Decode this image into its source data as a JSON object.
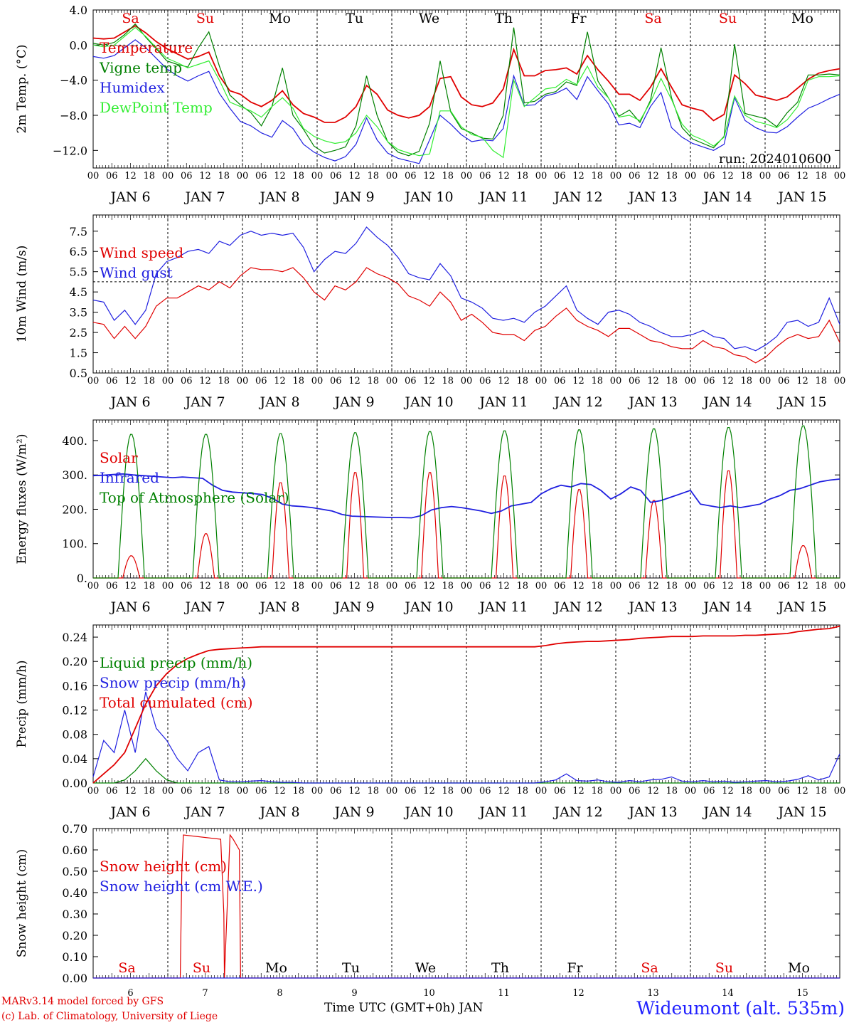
{
  "chart_data": [
    {
      "type": "line",
      "ylabel": "2m Temp. (°C)",
      "ylim": [
        -14,
        4
      ],
      "yticks": [
        "4.0",
        "0.0",
        "−4.0",
        "−8.0",
        "−12.0"
      ],
      "ytick_values": [
        4,
        0,
        -4,
        -8,
        -12
      ],
      "dashed_y": 0,
      "weekday_labels": true,
      "annotation": "run: 2024010600",
      "series": [
        {
          "name": "Temperature",
          "color": "#e00000",
          "values": [
            0.8,
            0.7,
            0.8,
            1.5,
            2.2,
            1.4,
            0.4,
            -0.4,
            -1.0,
            -1.6,
            -1.3,
            -0.8,
            -3.5,
            -5.2,
            -5.6,
            -6.5,
            -7.0,
            -6.3,
            -5.2,
            -6.8,
            -7.8,
            -8.2,
            -8.8,
            -8.8,
            -8.2,
            -7.0,
            -4.6,
            -5.6,
            -7.4,
            -8.0,
            -8.3,
            -8.0,
            -7.0,
            -3.8,
            -3.6,
            -5.9,
            -6.8,
            -7.0,
            -6.6,
            -5.0,
            -0.5,
            -3.5,
            -3.5,
            -2.9,
            -2.8,
            -2.6,
            -3.3,
            -1.2,
            -2.8,
            -4.1,
            -5.6,
            -5.6,
            -6.3,
            -4.8,
            -2.7,
            -4.8,
            -6.8,
            -7.2,
            -7.5,
            -8.6,
            -7.9,
            -3.4,
            -4.4,
            -5.7,
            -6.0,
            -6.3,
            -5.9,
            -4.9,
            -3.9,
            -3.2,
            -2.9,
            -2.7
          ]
        },
        {
          "name": "Vigne temp",
          "color": "#008000",
          "values": [
            0.2,
            0.0,
            0.3,
            1.2,
            2.4,
            0.9,
            -0.4,
            -1.8,
            -2.2,
            -2.5,
            -0.3,
            1.5,
            -2.4,
            -5.7,
            -6.8,
            -7.7,
            -9.2,
            -7.0,
            -2.6,
            -8.0,
            -9.6,
            -11.5,
            -12.3,
            -12.0,
            -11.6,
            -9.2,
            -3.5,
            -8.0,
            -11.0,
            -12.2,
            -12.6,
            -12.1,
            -8.9,
            -1.8,
            -7.6,
            -9.5,
            -10.0,
            -10.6,
            -10.7,
            -8.0,
            2.0,
            -6.6,
            -6.4,
            -5.6,
            -5.3,
            -4.2,
            -4.6,
            1.5,
            -4.1,
            -6.0,
            -8.1,
            -7.4,
            -8.8,
            -6.3,
            -0.3,
            -6.0,
            -9.4,
            -10.7,
            -11.2,
            -11.7,
            -10.4,
            0.1,
            -7.8,
            -8.1,
            -8.4,
            -9.3,
            -7.7,
            -6.5,
            -3.4,
            -3.4,
            -3.3,
            -3.4
          ]
        },
        {
          "name": "Humidex",
          "color": "#2020e0",
          "values": [
            -1.3,
            -1.5,
            -1.2,
            -0.3,
            0.6,
            -0.3,
            -1.5,
            -2.7,
            -3.5,
            -4.1,
            -3.5,
            -3.0,
            -5.5,
            -7.2,
            -8.7,
            -9.2,
            -10.0,
            -10.5,
            -8.6,
            -9.5,
            -11.3,
            -12.2,
            -12.8,
            -13.2,
            -12.7,
            -11.3,
            -8.3,
            -10.8,
            -12.3,
            -12.9,
            -13.2,
            -13.5,
            -10.8,
            -8.0,
            -9.0,
            -10.2,
            -11.0,
            -10.8,
            -10.9,
            -9.5,
            -3.5,
            -6.9,
            -6.8,
            -5.8,
            -5.5,
            -4.9,
            -6.2,
            -3.6,
            -5.2,
            -6.7,
            -9.1,
            -8.9,
            -9.4,
            -7.0,
            -5.4,
            -9.4,
            -10.5,
            -11.2,
            -11.6,
            -12.0,
            -11.3,
            -6.0,
            -8.6,
            -9.4,
            -9.9,
            -10.0,
            -9.3,
            -8.2,
            -7.2,
            -6.7,
            -6.1,
            -5.6
          ]
        },
        {
          "name": "DewPoint Temp",
          "color": "#33ee33",
          "values": [
            0.0,
            -0.2,
            0.0,
            1.0,
            2.0,
            1.0,
            -0.3,
            -1.5,
            -2.0,
            -2.6,
            -2.2,
            -1.8,
            -4.0,
            -6.5,
            -7.0,
            -7.5,
            -8.2,
            -7.0,
            -6.0,
            -7.2,
            -9.5,
            -10.4,
            -10.9,
            -11.2,
            -11.0,
            -10.0,
            -8.0,
            -9.3,
            -11.0,
            -11.9,
            -12.3,
            -12.6,
            -12.4,
            -7.5,
            -7.5,
            -9.3,
            -10.2,
            -10.5,
            -12.0,
            -12.8,
            -4.0,
            -7.0,
            -6.0,
            -5.0,
            -4.8,
            -3.9,
            -4.5,
            -2.4,
            -4.8,
            -6.0,
            -8.2,
            -8.0,
            -8.6,
            -6.5,
            -3.8,
            -6.2,
            -9.0,
            -10.3,
            -10.8,
            -11.5,
            -10.5,
            -5.8,
            -8.0,
            -8.7,
            -9.0,
            -9.4,
            -8.5,
            -7.0,
            -4.0,
            -3.6,
            -3.6,
            -3.5
          ]
        }
      ],
      "legend": [
        "Temperature",
        "Vigne temp",
        "Humidex",
        "DewPoint Temp"
      ],
      "legend_placement": "left"
    },
    {
      "type": "line",
      "ylabel": "10m Wind (m/s)",
      "ylim": [
        0.5,
        8.3
      ],
      "yticks": [
        "7.5",
        "6.5",
        "5.5",
        "4.5",
        "3.5",
        "2.5",
        "1.5",
        "0.5"
      ],
      "ytick_values": [
        7.5,
        6.5,
        5.5,
        4.5,
        3.5,
        2.5,
        1.5,
        0.5
      ],
      "dashed_y": 5,
      "series": [
        {
          "name": "Wind speed",
          "color": "#e00000",
          "values": [
            3.0,
            2.9,
            2.2,
            2.8,
            2.2,
            2.8,
            3.8,
            4.2,
            4.2,
            4.5,
            4.8,
            4.6,
            5.0,
            4.7,
            5.3,
            5.7,
            5.6,
            5.6,
            5.5,
            5.7,
            5.2,
            4.5,
            4.1,
            4.8,
            4.6,
            5.0,
            5.7,
            5.4,
            5.2,
            4.9,
            4.3,
            4.1,
            3.8,
            4.5,
            4.0,
            3.1,
            3.4,
            3.0,
            2.5,
            2.4,
            2.4,
            2.1,
            2.6,
            2.8,
            3.3,
            3.7,
            3.1,
            2.8,
            2.6,
            2.3,
            2.7,
            2.7,
            2.4,
            2.1,
            2.0,
            1.8,
            1.7,
            1.7,
            2.1,
            1.8,
            1.7,
            1.4,
            1.3,
            1.0,
            1.3,
            1.8,
            2.2,
            2.4,
            2.2,
            2.3,
            3.1,
            2.0
          ]
        },
        {
          "name": "Wind gust",
          "color": "#2020e0",
          "values": [
            4.1,
            4.0,
            3.1,
            3.6,
            2.9,
            3.6,
            5.4,
            6.0,
            6.2,
            6.5,
            6.6,
            6.4,
            7.0,
            6.8,
            7.3,
            7.5,
            7.3,
            7.4,
            7.3,
            7.4,
            6.7,
            5.5,
            6.1,
            6.5,
            6.4,
            6.9,
            7.7,
            7.2,
            6.8,
            6.2,
            5.4,
            5.2,
            5.1,
            5.9,
            5.3,
            4.2,
            4.0,
            3.7,
            3.2,
            3.1,
            3.2,
            3.0,
            3.5,
            3.8,
            4.3,
            4.8,
            3.6,
            3.2,
            2.9,
            3.5,
            3.6,
            3.4,
            3.0,
            2.8,
            2.5,
            2.3,
            2.3,
            2.4,
            2.6,
            2.3,
            2.2,
            1.7,
            1.8,
            1.6,
            1.9,
            2.3,
            3.0,
            3.1,
            2.8,
            3.0,
            4.2,
            2.9
          ]
        }
      ],
      "legend": [
        "Wind speed",
        "Wind gust"
      ],
      "legend_placement": "left"
    },
    {
      "type": "line",
      "ylabel": "Energy fluxes (W/m²)",
      "ylim": [
        0,
        460
      ],
      "yticks": [
        "400.",
        "300.",
        "200.",
        "100.",
        "0."
      ],
      "ytick_values": [
        400,
        300,
        200,
        100,
        0
      ],
      "series": [
        {
          "name": "Solar",
          "color": "#e00000",
          "day_peaks": [
            65,
            130,
            280,
            310,
            310,
            300,
            260,
            228,
            315,
            95
          ]
        },
        {
          "name": "Infrared",
          "color": "#2020e0",
          "values": [
            298,
            299,
            301,
            303,
            300,
            298,
            296,
            294,
            292,
            294,
            292,
            290,
            270,
            255,
            250,
            248,
            246,
            243,
            232,
            215,
            210,
            208,
            205,
            200,
            195,
            185,
            180,
            179,
            178,
            177,
            176,
            176,
            175,
            182,
            198,
            205,
            208,
            205,
            200,
            195,
            188,
            195,
            210,
            215,
            220,
            245,
            260,
            270,
            265,
            275,
            272,
            255,
            230,
            245,
            265,
            255,
            220,
            225,
            235,
            245,
            255,
            215,
            210,
            205,
            210,
            205,
            210,
            215,
            230,
            240,
            255,
            260,
            270,
            280,
            285,
            288
          ]
        },
        {
          "name": "Top of Atmosphere (Solar)",
          "color": "#008000",
          "day_peaks": [
            420,
            420,
            422,
            425,
            428,
            430,
            433,
            436,
            440,
            445
          ]
        }
      ],
      "legend": [
        "Solar",
        "Infrared",
        "Top of Atmosphere (Solar)"
      ],
      "legend_placement": "left"
    },
    {
      "type": "line",
      "ylabel": "Precip (mm/h)",
      "ylim": [
        0,
        0.26
      ],
      "yticks": [
        "0.24",
        "0.20",
        "0.16",
        "0.12",
        "0.08",
        "0.04",
        "0.00"
      ],
      "ytick_values": [
        0.24,
        0.2,
        0.16,
        0.12,
        0.08,
        0.04,
        0.0
      ],
      "series": [
        {
          "name": "Liquid precip (mm/h)",
          "color": "#008000",
          "values": [
            0,
            0,
            0,
            0.005,
            0.02,
            0.04,
            0.02,
            0.005,
            0,
            0,
            0,
            0,
            0,
            0,
            0,
            0,
            0,
            0,
            0,
            0,
            0,
            0,
            0,
            0,
            0,
            0,
            0,
            0,
            0,
            0,
            0,
            0,
            0,
            0,
            0,
            0,
            0,
            0,
            0,
            0,
            0,
            0,
            0,
            0,
            0,
            0,
            0,
            0,
            0,
            0,
            0,
            0,
            0,
            0,
            0,
            0,
            0,
            0,
            0,
            0,
            0,
            0,
            0,
            0,
            0,
            0,
            0,
            0,
            0,
            0,
            0,
            0
          ]
        },
        {
          "name": "Snow precip (mm/h)",
          "color": "#2020e0",
          "values": [
            0.01,
            0.07,
            0.05,
            0.12,
            0.05,
            0.15,
            0.09,
            0.07,
            0.04,
            0.02,
            0.05,
            0.06,
            0.005,
            0.002,
            0.002,
            0.003,
            0.004,
            0.002,
            0.001,
            0.001,
            0,
            0,
            0,
            0,
            0,
            0,
            0,
            0,
            0,
            0,
            0,
            0,
            0,
            0,
            0,
            0,
            0,
            0,
            0,
            0,
            0,
            0,
            0,
            0.002,
            0.005,
            0.015,
            0.004,
            0.003,
            0.005,
            0.002,
            0.001,
            0.004,
            0.002,
            0.005,
            0.006,
            0.01,
            0.003,
            0.002,
            0.004,
            0.002,
            0.003,
            0.001,
            0.002,
            0.003,
            0.004,
            0.002,
            0.003,
            0.006,
            0.012,
            0.005,
            0.01,
            0.048
          ]
        },
        {
          "name": "Total cumulated (cm)",
          "color": "#e00000",
          "values": [
            0.0,
            0.015,
            0.03,
            0.05,
            0.09,
            0.13,
            0.16,
            0.18,
            0.195,
            0.205,
            0.212,
            0.218,
            0.22,
            0.221,
            0.222,
            0.223,
            0.224,
            0.224,
            0.224,
            0.224,
            0.224,
            0.224,
            0.224,
            0.224,
            0.224,
            0.224,
            0.224,
            0.224,
            0.224,
            0.224,
            0.224,
            0.224,
            0.224,
            0.224,
            0.224,
            0.224,
            0.224,
            0.224,
            0.224,
            0.224,
            0.224,
            0.224,
            0.224,
            0.226,
            0.229,
            0.231,
            0.232,
            0.233,
            0.233,
            0.234,
            0.235,
            0.236,
            0.238,
            0.239,
            0.24,
            0.241,
            0.241,
            0.241,
            0.242,
            0.242,
            0.242,
            0.242,
            0.243,
            0.243,
            0.244,
            0.245,
            0.246,
            0.249,
            0.251,
            0.253,
            0.254,
            0.258
          ]
        }
      ],
      "legend": [
        "Liquid precip (mm/h)",
        "Snow precip (mm/h)",
        "Total cumulated (cm)"
      ],
      "legend_placement": "left"
    },
    {
      "type": "line",
      "ylabel": "Snow height (cm)",
      "ylim": [
        0,
        0.7
      ],
      "yticks": [
        "0.70",
        "0.60",
        "0.50",
        "0.40",
        "0.30",
        "0.20",
        "0.10",
        "0.00"
      ],
      "ytick_values": [
        0.7,
        0.6,
        0.5,
        0.4,
        0.3,
        0.2,
        0.1,
        0.0
      ],
      "series": [
        {
          "name": "Snow height (cm)",
          "color": "#e00000",
          "x": [
            0,
            24,
            28,
            28.5,
            29,
            41,
            42,
            42.2,
            44,
            45,
            47,
            47.4,
            48,
            240
          ],
          "values": [
            0,
            0,
            0,
            0.5,
            0.67,
            0.65,
            0.3,
            0,
            0.67,
            0.65,
            0.6,
            0,
            0,
            0
          ]
        },
        {
          "name": "Snow height (cm W.E.)",
          "color": "#2020e0",
          "x": [
            0,
            240
          ],
          "values": [
            0,
            0
          ]
        }
      ],
      "legend": [
        "Snow height (cm)",
        "Snow height (cm W.E.)"
      ],
      "legend_placement": "left"
    }
  ],
  "time_axis": {
    "hours": [
      "00",
      "06",
      "12",
      "18"
    ],
    "dates": [
      "JAN  6",
      "JAN  7",
      "JAN  8",
      "JAN  9",
      "JAN 10",
      "JAN 11",
      "JAN 12",
      "JAN 13",
      "JAN 14",
      "JAN 15"
    ],
    "day_numbers": [
      "6",
      "7",
      "8",
      "9",
      "10",
      "11",
      "12",
      "13",
      "14",
      "15"
    ],
    "weekdays": [
      "Sa",
      "Su",
      "Mo",
      "Tu",
      "We",
      "Th",
      "Fr",
      "Sa",
      "Su",
      "Mo"
    ],
    "weekend_color": "#e00000",
    "xlabel": "Time UTC (GMT+0h) JAN"
  },
  "footer": {
    "credit_line1": "MARv3.14 model forced by GFS",
    "credit_line2": "(c) Lab. of Climatology, University of Liege",
    "station": "Wideumont (alt. 535m)"
  }
}
